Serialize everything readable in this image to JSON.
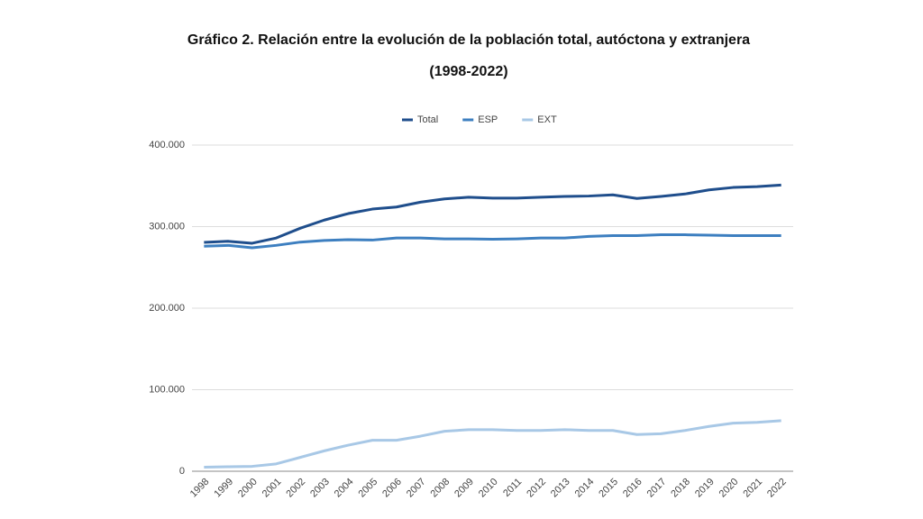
{
  "chart_data": {
    "type": "line",
    "title": "Gráfico 2. Relación entre la evolución de la población total, autóctona y extranjera",
    "subtitle": "(1998-2022)",
    "categories": [
      "1998",
      "1999",
      "2000",
      "2001",
      "2002",
      "2003",
      "2004",
      "2005",
      "2006",
      "2007",
      "2008",
      "2009",
      "2010",
      "2011",
      "2012",
      "2013",
      "2014",
      "2015",
      "2016",
      "2017",
      "2018",
      "2019",
      "2020",
      "2021",
      "2022"
    ],
    "series": [
      {
        "name": "Total",
        "color": "#1f4e8c",
        "values": [
          280700,
          282000,
          279600,
          286000,
          298000,
          308000,
          316000,
          321500,
          324000,
          330000,
          334000,
          336000,
          335000,
          335000,
          336000,
          337000,
          337500,
          339000,
          334500,
          337000,
          340000,
          345000,
          348000,
          349000,
          351000
        ]
      },
      {
        "name": "ESP",
        "color": "#3d7fc0",
        "values": [
          276000,
          277000,
          274000,
          277000,
          281000,
          283000,
          284000,
          283500,
          286000,
          286000,
          285000,
          285000,
          284500,
          285000,
          286000,
          286000,
          288000,
          289000,
          289000,
          290000,
          290000,
          289500,
          289000,
          289000,
          289000
        ]
      },
      {
        "name": "EXT",
        "color": "#a8c8e6",
        "values": [
          5000,
          5500,
          6000,
          9000,
          17000,
          25000,
          32000,
          38000,
          38000,
          43000,
          49000,
          51000,
          51000,
          50000,
          50000,
          51000,
          50000,
          50000,
          45000,
          46000,
          50000,
          55000,
          59000,
          60000,
          62000
        ]
      }
    ],
    "ylim": [
      0,
      400000
    ],
    "yticks": [
      0,
      {
        "value": 100000,
        "label": "100.000"
      },
      {
        "value": 200000,
        "label": "200.000"
      },
      {
        "value": 300000,
        "label": "300.000"
      },
      {
        "value": 400000,
        "label": "400.000"
      }
    ],
    "grid": true,
    "legend": "top"
  }
}
